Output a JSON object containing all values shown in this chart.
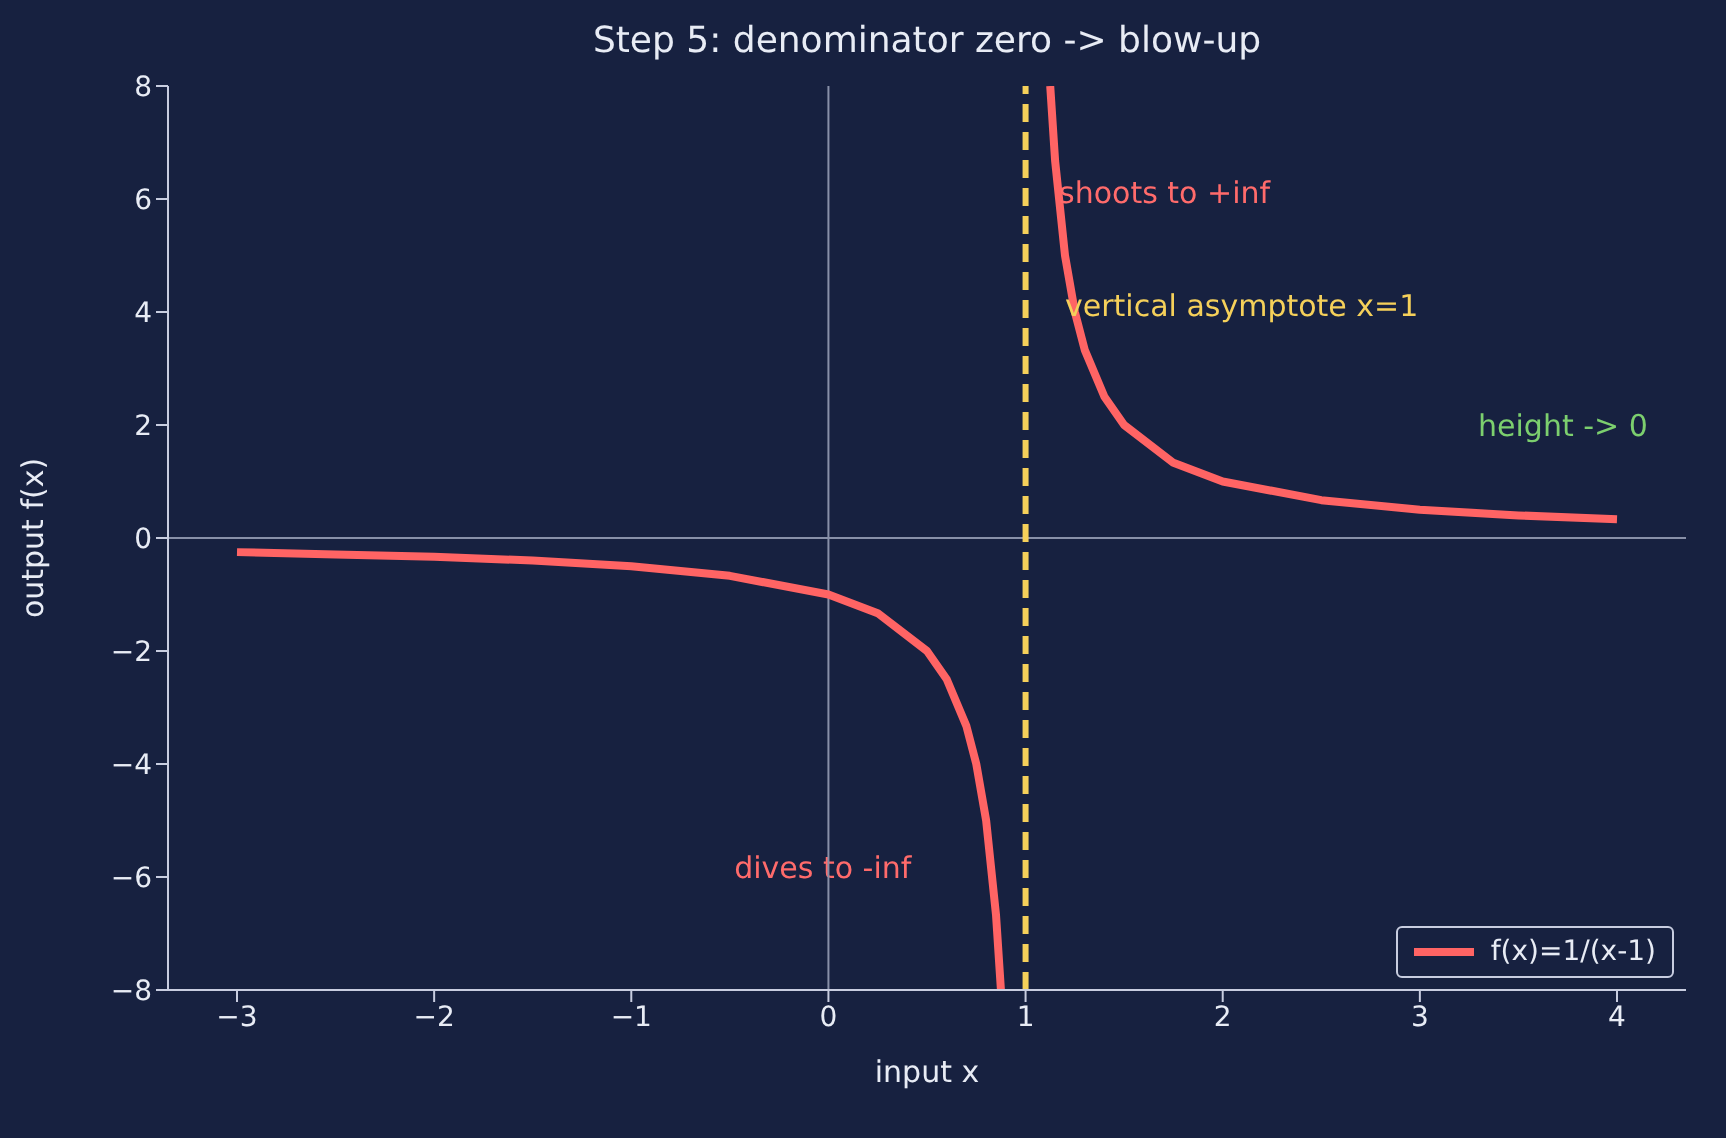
{
  "chart_data": {
    "type": "line",
    "title": "Step 5: denominator zero -> blow-up",
    "xlabel": "input x",
    "ylabel": "output f(x)",
    "x": [
      -3,
      -2.5,
      -2,
      -1.5,
      -1,
      -0.5,
      0,
      0.25,
      0.5,
      0.6,
      0.7,
      0.75,
      0.8,
      0.85,
      0.875,
      1,
      1.125,
      1.15,
      1.2,
      1.25,
      1.3,
      1.4,
      1.5,
      1.75,
      2,
      2.5,
      3,
      3.5,
      4
    ],
    "series": [
      {
        "name": "f(x)=1/(x-1)",
        "color": "#ff6464",
        "values": [
          -0.25,
          -0.29,
          -0.33,
          -0.4,
          -0.5,
          -0.67,
          -1,
          -1.33,
          -2,
          -2.5,
          -3.33,
          -4,
          -5,
          -6.67,
          -8,
          null,
          8,
          6.67,
          5,
          4,
          3.33,
          2.5,
          2,
          1.33,
          1,
          0.67,
          0.5,
          0.4,
          0.33
        ]
      }
    ],
    "xlim": [
      -3.35,
      4.35
    ],
    "xticks": [
      -3,
      -2,
      -1,
      0,
      1,
      2,
      3,
      4
    ],
    "ylim": [
      -8,
      8
    ],
    "yticks": [
      -8,
      -6,
      -4,
      -2,
      0,
      2,
      4,
      6,
      8
    ],
    "ref_lines": [
      {
        "axis": "x",
        "value": 0,
        "color": "#8890a8",
        "line_style": "solid"
      },
      {
        "axis": "y",
        "value": 0,
        "color": "#8890a8",
        "line_style": "solid"
      },
      {
        "axis": "x",
        "value": 1,
        "color": "#f5d05a",
        "line_style": "dashed"
      }
    ],
    "annotations": [
      {
        "text": "shoots to +inf",
        "x": 1.17,
        "y": 6.1
      },
      {
        "text": "vertical asymptote x=1",
        "x": 1.2,
        "y": 4.1
      },
      "height -> 0",
      "dives to -inf"
    ],
    "legend": "bottom right",
    "grid": false,
    "marker": "none",
    "line_style": "solid"
  }
}
